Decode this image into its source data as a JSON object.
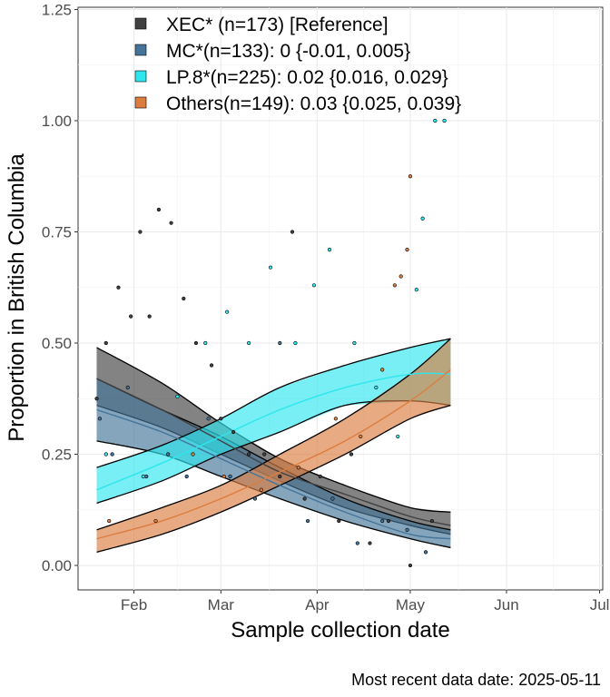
{
  "chart_data": {
    "type": "line",
    "title": "",
    "xlabel": "Sample collection date",
    "ylabel": "Proportion in British Columbia",
    "caption": "Most recent data date: 2025-05-11",
    "xlim": [
      "2025-01-14",
      "2025-07-02"
    ],
    "ylim": [
      -0.055,
      1.255
    ],
    "x_ticks": [
      {
        "date": "2025-02-01",
        "label": "Feb"
      },
      {
        "date": "2025-03-01",
        "label": "Mar"
      },
      {
        "date": "2025-04-01",
        "label": "Apr"
      },
      {
        "date": "2025-05-01",
        "label": "May"
      },
      {
        "date": "2025-06-01",
        "label": "Jun"
      },
      {
        "date": "2025-07-01",
        "label": "Jul"
      }
    ],
    "y_ticks": [
      {
        "value": 0,
        "label": "0.00"
      },
      {
        "value": 0.25,
        "label": "0.25"
      },
      {
        "value": 0.5,
        "label": "0.50"
      },
      {
        "value": 0.75,
        "label": "0.75"
      },
      {
        "value": 1.0,
        "label": "1.00"
      },
      {
        "value": 1.25,
        "label": "1.25"
      }
    ],
    "grid": true,
    "legend_position": "top-left",
    "series": [
      {
        "name": "XEC* (n=173)  [Reference]",
        "color": "#404040",
        "fit": {
          "x": [
            "2025-01-20",
            "2025-02-10",
            "2025-03-01",
            "2025-03-20",
            "2025-04-10",
            "2025-05-01",
            "2025-05-14"
          ],
          "y": [
            0.42,
            0.35,
            0.28,
            0.21,
            0.16,
            0.11,
            0.09
          ]
        },
        "lower": {
          "x": [
            "2025-01-20",
            "2025-02-10",
            "2025-03-01",
            "2025-03-20",
            "2025-04-10",
            "2025-05-01",
            "2025-05-14"
          ],
          "y": [
            0.36,
            0.31,
            0.25,
            0.19,
            0.13,
            0.09,
            0.07
          ]
        },
        "upper": {
          "x": [
            "2025-01-20",
            "2025-02-10",
            "2025-03-01",
            "2025-03-20",
            "2025-04-10",
            "2025-05-01",
            "2025-05-14"
          ],
          "y": [
            0.49,
            0.41,
            0.32,
            0.24,
            0.18,
            0.13,
            0.12
          ]
        },
        "points": [
          {
            "x": "2025-01-20",
            "y": 0.375
          },
          {
            "x": "2025-01-23",
            "y": 0.5
          },
          {
            "x": "2025-01-27",
            "y": 0.625
          },
          {
            "x": "2025-01-31",
            "y": 0.56
          },
          {
            "x": "2025-02-03",
            "y": 0.75
          },
          {
            "x": "2025-02-06",
            "y": 0.56
          },
          {
            "x": "2025-02-09",
            "y": 0.8
          },
          {
            "x": "2025-02-13",
            "y": 0.77
          },
          {
            "x": "2025-02-17",
            "y": 0.6
          },
          {
            "x": "2025-02-21",
            "y": 0.5
          },
          {
            "x": "2025-02-26",
            "y": 0.45
          },
          {
            "x": "2025-03-01",
            "y": 0.33
          },
          {
            "x": "2025-03-05",
            "y": 0.3
          },
          {
            "x": "2025-03-10",
            "y": 0.25
          },
          {
            "x": "2025-03-15",
            "y": 0.25
          },
          {
            "x": "2025-03-20",
            "y": 0.2
          },
          {
            "x": "2025-03-24",
            "y": 0.75
          },
          {
            "x": "2025-03-28",
            "y": 0.15
          },
          {
            "x": "2025-04-02",
            "y": 0.2
          },
          {
            "x": "2025-04-08",
            "y": 0.1
          },
          {
            "x": "2025-04-12",
            "y": 0.25
          },
          {
            "x": "2025-04-18",
            "y": 0.05
          },
          {
            "x": "2025-04-24",
            "y": 0.1
          },
          {
            "x": "2025-05-01",
            "y": 0
          },
          {
            "x": "2025-05-08",
            "y": 0.1
          }
        ]
      },
      {
        "name": "MC*(n=133): 0 {-0.01, 0.005}",
        "color": "#44749a",
        "fit": {
          "x": [
            "2025-01-20",
            "2025-02-10",
            "2025-03-01",
            "2025-03-20",
            "2025-04-10",
            "2025-05-01",
            "2025-05-14"
          ],
          "y": [
            0.35,
            0.3,
            0.24,
            0.18,
            0.12,
            0.07,
            0.06
          ]
        },
        "lower": {
          "x": [
            "2025-01-20",
            "2025-02-10",
            "2025-03-01",
            "2025-03-20",
            "2025-04-10",
            "2025-05-01",
            "2025-05-14"
          ],
          "y": [
            0.28,
            0.25,
            0.2,
            0.15,
            0.1,
            0.06,
            0.04
          ]
        },
        "upper": {
          "x": [
            "2025-01-20",
            "2025-02-10",
            "2025-03-01",
            "2025-03-20",
            "2025-04-10",
            "2025-05-01",
            "2025-05-14"
          ],
          "y": [
            0.42,
            0.35,
            0.29,
            0.22,
            0.15,
            0.1,
            0.08
          ]
        },
        "points": [
          {
            "x": "2025-01-21",
            "y": 0.33
          },
          {
            "x": "2025-01-25",
            "y": 0.25
          },
          {
            "x": "2025-01-30",
            "y": 0.4
          },
          {
            "x": "2025-02-05",
            "y": 0.2
          },
          {
            "x": "2025-02-12",
            "y": 0.25
          },
          {
            "x": "2025-02-18",
            "y": 0.2
          },
          {
            "x": "2025-02-25",
            "y": 0.33
          },
          {
            "x": "2025-03-04",
            "y": 0.2
          },
          {
            "x": "2025-03-12",
            "y": 0.15
          },
          {
            "x": "2025-03-20",
            "y": 0.5
          },
          {
            "x": "2025-03-29",
            "y": 0.1
          },
          {
            "x": "2025-04-06",
            "y": 0.15
          },
          {
            "x": "2025-04-14",
            "y": 0.05
          },
          {
            "x": "2025-04-22",
            "y": 0.1
          },
          {
            "x": "2025-04-30",
            "y": 0.08
          },
          {
            "x": "2025-05-06",
            "y": 0.03
          }
        ]
      },
      {
        "name": "LP.8*(n=225): 0.02 {0.016, 0.029}",
        "color": "#2ee6ee",
        "fit": {
          "x": [
            "2025-01-20",
            "2025-02-10",
            "2025-03-01",
            "2025-03-20",
            "2025-04-10",
            "2025-05-01",
            "2025-05-14"
          ],
          "y": [
            0.17,
            0.23,
            0.29,
            0.35,
            0.4,
            0.43,
            0.43
          ]
        },
        "lower": {
          "x": [
            "2025-01-20",
            "2025-02-10",
            "2025-03-01",
            "2025-03-20",
            "2025-04-10",
            "2025-05-01",
            "2025-05-14"
          ],
          "y": [
            0.14,
            0.19,
            0.25,
            0.3,
            0.36,
            0.37,
            0.36
          ]
        },
        "upper": {
          "x": [
            "2025-01-20",
            "2025-02-10",
            "2025-03-01",
            "2025-03-20",
            "2025-04-10",
            "2025-05-01",
            "2025-05-14"
          ],
          "y": [
            0.22,
            0.27,
            0.33,
            0.4,
            0.45,
            0.49,
            0.51
          ]
        },
        "points": [
          {
            "x": "2025-01-23",
            "y": 0.25
          },
          {
            "x": "2025-02-04",
            "y": 0.2
          },
          {
            "x": "2025-02-15",
            "y": 0.38
          },
          {
            "x": "2025-02-24",
            "y": 0.5
          },
          {
            "x": "2025-03-03",
            "y": 0.57
          },
          {
            "x": "2025-03-10",
            "y": 0.5
          },
          {
            "x": "2025-03-17",
            "y": 0.67
          },
          {
            "x": "2025-03-25",
            "y": 0.5
          },
          {
            "x": "2025-03-31",
            "y": 0.63
          },
          {
            "x": "2025-04-05",
            "y": 0.71
          },
          {
            "x": "2025-04-13",
            "y": 0.5
          },
          {
            "x": "2025-04-20",
            "y": 0.4
          },
          {
            "x": "2025-04-27",
            "y": 0.29
          },
          {
            "x": "2025-05-03",
            "y": 0.62
          },
          {
            "x": "2025-05-05",
            "y": 0.78
          },
          {
            "x": "2025-05-09",
            "y": 1.0
          },
          {
            "x": "2025-05-12",
            "y": 1.0
          }
        ]
      },
      {
        "name": "Others(n=149): 0.03 {0.025, 0.039}",
        "color": "#dc7d3f",
        "fit": {
          "x": [
            "2025-01-20",
            "2025-02-10",
            "2025-03-01",
            "2025-03-20",
            "2025-04-10",
            "2025-05-01",
            "2025-05-14"
          ],
          "y": [
            0.06,
            0.1,
            0.15,
            0.21,
            0.28,
            0.37,
            0.44
          ]
        },
        "lower": {
          "x": [
            "2025-01-20",
            "2025-02-10",
            "2025-03-01",
            "2025-03-20",
            "2025-04-10",
            "2025-05-01",
            "2025-05-14"
          ],
          "y": [
            0.03,
            0.07,
            0.12,
            0.18,
            0.25,
            0.33,
            0.36
          ]
        },
        "upper": {
          "x": [
            "2025-01-20",
            "2025-02-10",
            "2025-03-01",
            "2025-03-20",
            "2025-04-10",
            "2025-05-01",
            "2025-05-14"
          ],
          "y": [
            0.08,
            0.13,
            0.18,
            0.25,
            0.33,
            0.43,
            0.51
          ]
        },
        "points": [
          {
            "x": "2025-01-24",
            "y": 0.1
          },
          {
            "x": "2025-02-08",
            "y": 0.1
          },
          {
            "x": "2025-02-20",
            "y": 0.25
          },
          {
            "x": "2025-03-02",
            "y": 0.2
          },
          {
            "x": "2025-03-14",
            "y": 0.17
          },
          {
            "x": "2025-03-26",
            "y": 0.22
          },
          {
            "x": "2025-04-07",
            "y": 0.33
          },
          {
            "x": "2025-04-15",
            "y": 0.29
          },
          {
            "x": "2025-04-22",
            "y": 0.44
          },
          {
            "x": "2025-04-26",
            "y": 0.63
          },
          {
            "x": "2025-04-28",
            "y": 0.65
          },
          {
            "x": "2025-04-30",
            "y": 0.71
          },
          {
            "x": "2025-05-01",
            "y": 0.875
          }
        ]
      }
    ]
  }
}
